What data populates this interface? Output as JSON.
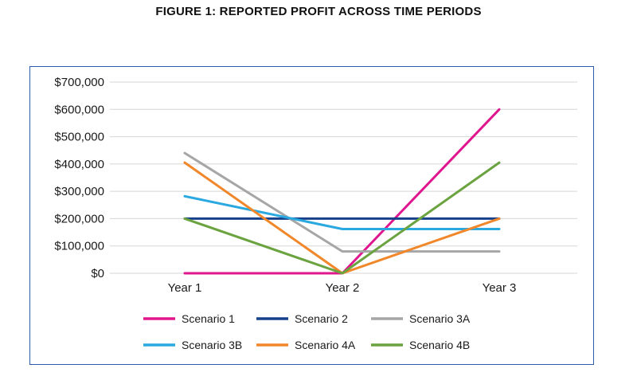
{
  "figure_title": "FIGURE 1: REPORTED PROFIT ACROSS TIME PERIODS",
  "chart_data": {
    "type": "line",
    "title": "FIGURE 1: REPORTED PROFIT ACROSS TIME PERIODS",
    "xlabel": "",
    "ylabel": "",
    "categories": [
      "Year 1",
      "Year 2",
      "Year 3"
    ],
    "ylim": [
      0,
      700000
    ],
    "yticks": [
      0,
      100000,
      200000,
      300000,
      400000,
      500000,
      600000,
      700000
    ],
    "ytick_labels": [
      "$0",
      "$100,000",
      "$200,000",
      "$300,000",
      "$400,000",
      "$500,000",
      "$600,000",
      "$700,000"
    ],
    "grid": true,
    "legend_position": "bottom",
    "series": [
      {
        "name": "Scenario 1",
        "color": "#e0168f",
        "values": [
          0,
          0,
          600000
        ]
      },
      {
        "name": "Scenario 2",
        "color": "#17408b",
        "values": [
          200000,
          200000,
          200000
        ]
      },
      {
        "name": "Scenario 3A",
        "color": "#a6a6a6",
        "values": [
          440000,
          80000,
          80000
        ]
      },
      {
        "name": "Scenario 3B",
        "color": "#2aa8e0",
        "values": [
          282000,
          162000,
          162000
        ]
      },
      {
        "name": "Scenario 4A",
        "color": "#f0872a",
        "values": [
          405000,
          0,
          200000
        ]
      },
      {
        "name": "Scenario 4B",
        "color": "#6aa33f",
        "values": [
          200000,
          0,
          405000
        ]
      }
    ]
  }
}
